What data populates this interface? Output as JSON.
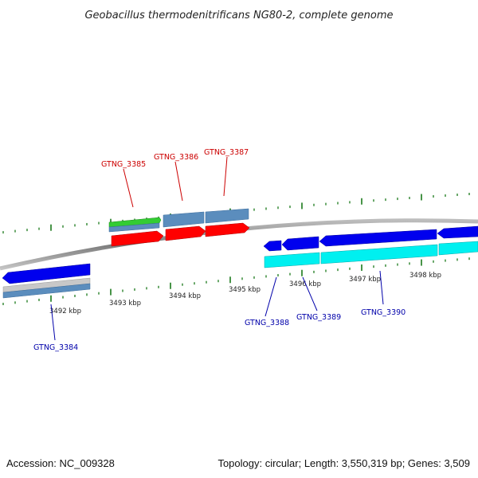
{
  "title": "Geobacillus thermodenitrificans NG80-2, complete genome",
  "footer": {
    "accession": "Accession: NC_009328",
    "summary": "Topology: circular; Length: 3,550,319 bp; Genes: 3,509"
  },
  "colors": {
    "forward_label": "#cc0000",
    "reverse_label": "#0000aa",
    "tick": "#1a7a1a",
    "backbone": "#808080",
    "gene_red": "#ff0000",
    "gene_blue": "#0000ee",
    "gene_cyan": "#00f0f0",
    "gene_steel": "#5b8dbd",
    "gene_green": "#33cc33",
    "gene_grey": "#c0c0c0"
  },
  "scale_ticks": [
    "3492 kbp",
    "3493 kbp",
    "3494 kbp",
    "3495 kbp",
    "3496 kbp",
    "3497 kbp",
    "3498 kbp"
  ],
  "forward_labels": [
    "GTNG_3385",
    "GTNG_3386",
    "GTNG_3387"
  ],
  "reverse_labels": [
    "GTNG_3384",
    "GTNG_3388",
    "GTNG_3389",
    "GTNG_3390"
  ]
}
